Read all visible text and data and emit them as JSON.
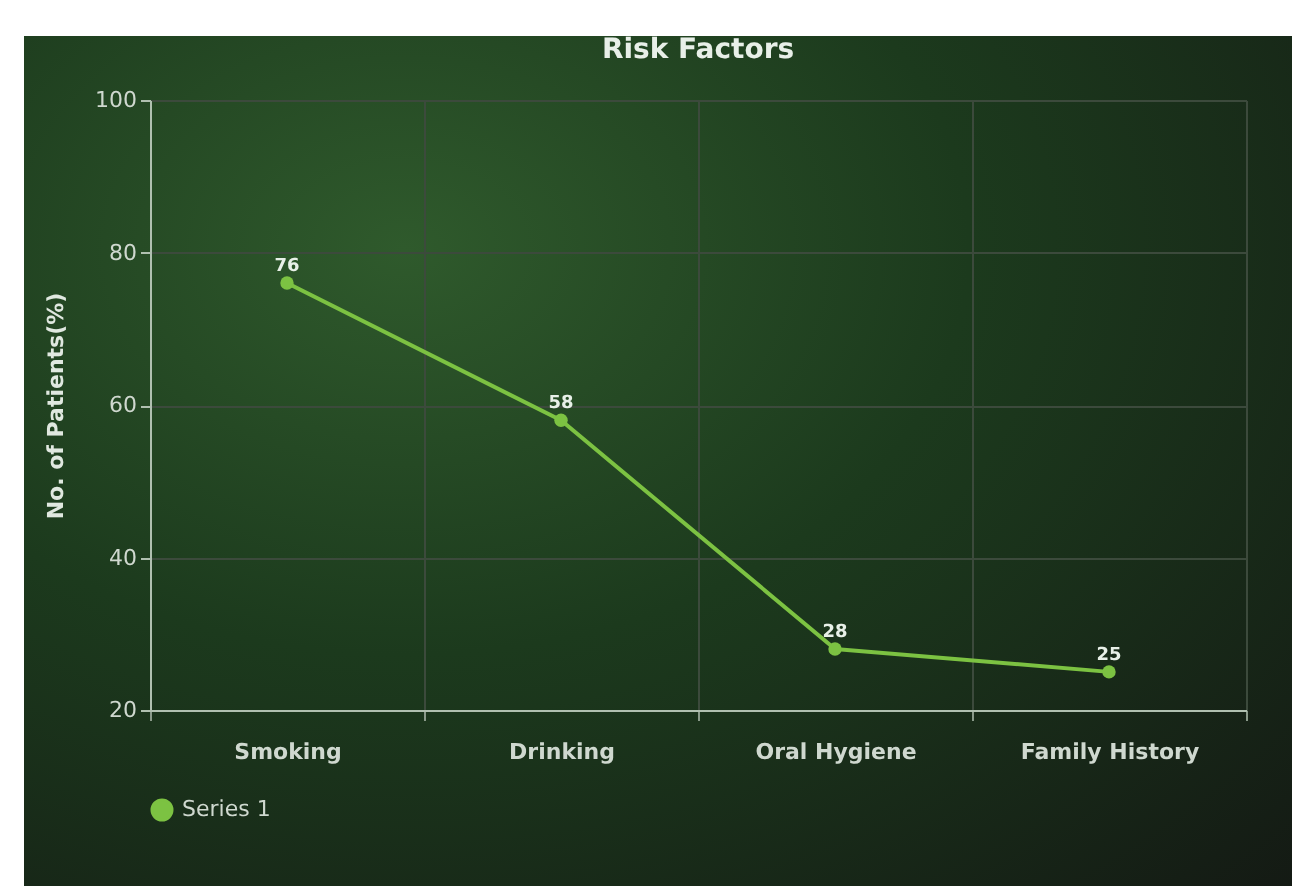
{
  "chart_data": {
    "type": "line",
    "title": "Risk Factors",
    "ylabel": "No. of Patients(%)",
    "categories": [
      "Smoking",
      "Drinking",
      "Oral Hygiene",
      "Family History"
    ],
    "series": [
      {
        "name": "Series 1",
        "color": "#7cc242",
        "values": [
          76,
          58,
          28,
          25
        ]
      }
    ],
    "ylim": [
      20,
      100
    ],
    "yticks": [
      20,
      40,
      60,
      80,
      100
    ],
    "grid": true,
    "legend": "bottom",
    "marker": "circle",
    "line_style": "solid",
    "data_labels": true
  }
}
